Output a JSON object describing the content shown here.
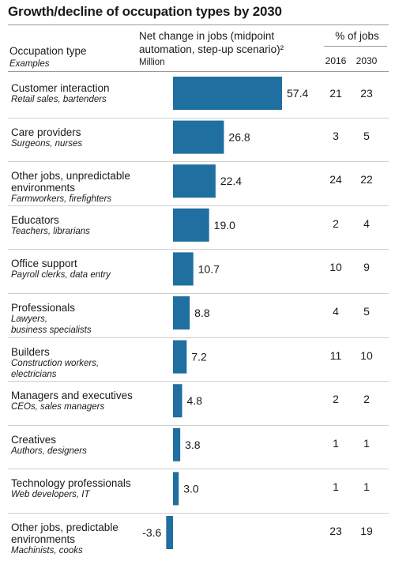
{
  "title": "Growth/decline of occupation types by 2030",
  "headers": {
    "occupation": "Occupation type",
    "examples": "Examples",
    "net_change_line1": "Net change in jobs (midpoint",
    "net_change_line2": "automation, step-up scenario)²",
    "net_change_unit": "Million",
    "pct_jobs": "% of jobs",
    "year_2016": "2016",
    "year_2030": "2030"
  },
  "colors": {
    "bar": "#1f6fa0"
  },
  "chart_data": {
    "type": "bar",
    "orientation": "horizontal",
    "title": "Growth/decline of occupation types by 2030",
    "xlabel": "Net change in jobs (midpoint automation, step-up scenario)²",
    "unit": "Million",
    "categories": [
      "Customer interaction",
      "Care providers",
      "Other jobs, unpredictable environments",
      "Educators",
      "Office support",
      "Professionals",
      "Builders",
      "Managers and executives",
      "Creatives",
      "Technology professionals",
      "Other jobs, predictable environments"
    ],
    "values": [
      57.4,
      26.8,
      22.4,
      19.0,
      10.7,
      8.8,
      7.2,
      4.8,
      3.8,
      3.0,
      -3.6
    ],
    "value_labels": [
      "57.4",
      "26.8",
      "22.4",
      "19.0",
      "10.7",
      "8.8",
      "7.2",
      "4.8",
      "3.8",
      "3.0",
      "-3.6"
    ],
    "xlim": [
      -3.6,
      57.4
    ],
    "grid": false,
    "legend": "none"
  },
  "rows": [
    {
      "name_lines": [
        "Customer interaction"
      ],
      "example_lines": [
        "Retail sales, bartenders"
      ],
      "value": "57.4",
      "pct_2016": "21",
      "pct_2030": "23"
    },
    {
      "name_lines": [
        "Care providers"
      ],
      "example_lines": [
        "Surgeons, nurses"
      ],
      "value": "26.8",
      "pct_2016": "3",
      "pct_2030": "5"
    },
    {
      "name_lines": [
        "Other jobs, unpredictable",
        "environments"
      ],
      "example_lines": [
        "Farmworkers, firefighters"
      ],
      "value": "22.4",
      "pct_2016": "24",
      "pct_2030": "22"
    },
    {
      "name_lines": [
        "Educators"
      ],
      "example_lines": [
        "Teachers, librarians"
      ],
      "value": "19.0",
      "pct_2016": "2",
      "pct_2030": "4"
    },
    {
      "name_lines": [
        "Office support"
      ],
      "example_lines": [
        "Payroll clerks, data entry"
      ],
      "value": "10.7",
      "pct_2016": "10",
      "pct_2030": "9"
    },
    {
      "name_lines": [
        "Professionals"
      ],
      "example_lines": [
        "Lawyers,",
        "business specialists"
      ],
      "value": "8.8",
      "pct_2016": "4",
      "pct_2030": "5"
    },
    {
      "name_lines": [
        "Builders"
      ],
      "example_lines": [
        "Construction workers,",
        "electricians"
      ],
      "value": "7.2",
      "pct_2016": "11",
      "pct_2030": "10"
    },
    {
      "name_lines": [
        "Managers and executives"
      ],
      "example_lines": [
        "CEOs, sales managers"
      ],
      "value": "4.8",
      "pct_2016": "2",
      "pct_2030": "2"
    },
    {
      "name_lines": [
        "Creatives"
      ],
      "example_lines": [
        "Authors, designers"
      ],
      "value": "3.8",
      "pct_2016": "1",
      "pct_2030": "1"
    },
    {
      "name_lines": [
        "Technology professionals"
      ],
      "example_lines": [
        "Web developers, IT"
      ],
      "value": "3.0",
      "pct_2016": "1",
      "pct_2030": "1"
    },
    {
      "name_lines": [
        "Other jobs, predictable",
        "environments"
      ],
      "example_lines": [
        "Machinists, cooks"
      ],
      "value": "-3.6",
      "pct_2016": "23",
      "pct_2030": "19"
    }
  ]
}
